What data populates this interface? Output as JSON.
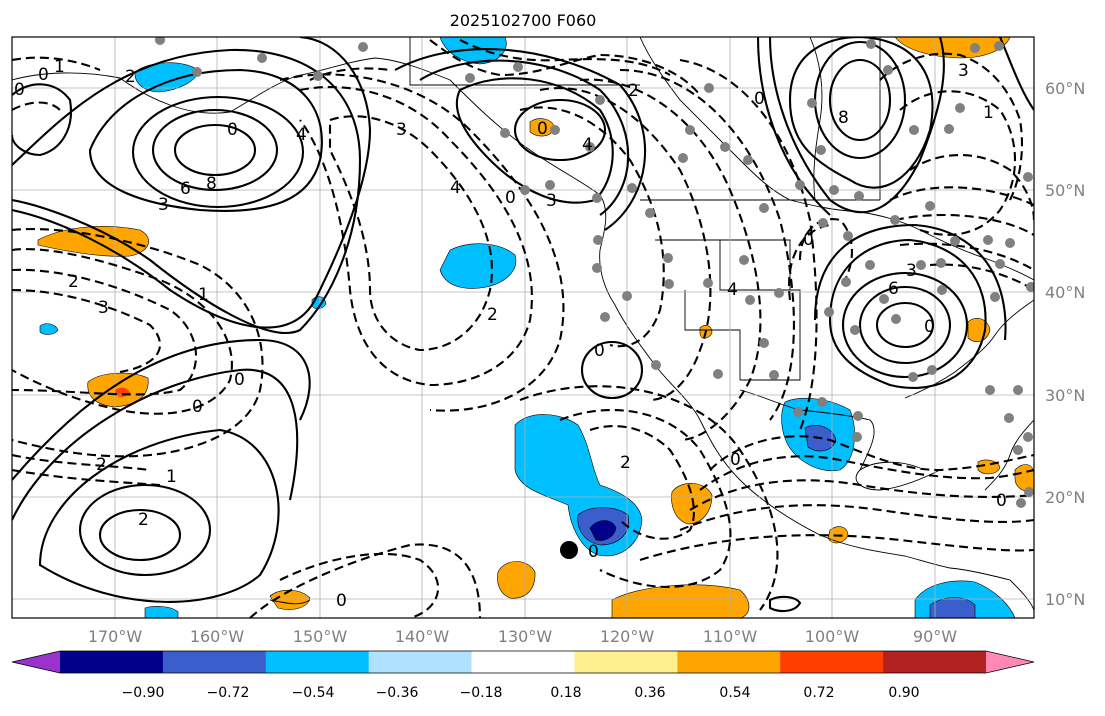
{
  "title": "2025102700 F060",
  "lat_labels": [
    "60°N",
    "50°N",
    "40°N",
    "30°N",
    "20°N",
    "10°N"
  ],
  "lon_labels": [
    "170°W",
    "160°W",
    "150°W",
    "140°W",
    "130°W",
    "120°W",
    "110°W",
    "100°W",
    "90°W"
  ],
  "colorbar": {
    "ticks": [
      "−0.90",
      "−0.72",
      "−0.54",
      "−0.36",
      "−0.18",
      "0.18",
      "0.36",
      "0.54",
      "0.72",
      "0.90"
    ],
    "colors": [
      "#9a32cd",
      "#00008b",
      "#3a5fcd",
      "#00bfff",
      "#b0e2ff",
      "#ffffff",
      "#fff08f",
      "#ffa500",
      "#ff3e00",
      "#b22222",
      "#ff89b4"
    ]
  },
  "contour_labels": [
    {
      "text": "0"
    },
    {
      "text": "1"
    },
    {
      "text": "2"
    },
    {
      "text": "0"
    },
    {
      "text": "8"
    },
    {
      "text": "6"
    },
    {
      "text": "3"
    },
    {
      "text": "4"
    },
    {
      "text": "2"
    },
    {
      "text": "3"
    },
    {
      "text": "1"
    },
    {
      "text": "0"
    },
    {
      "text": "0"
    },
    {
      "text": "2"
    },
    {
      "text": "1"
    },
    {
      "text": "2"
    },
    {
      "text": "3"
    },
    {
      "text": "4"
    },
    {
      "text": "0"
    },
    {
      "text": "3"
    },
    {
      "text": "0"
    },
    {
      "text": "4"
    },
    {
      "text": "2"
    },
    {
      "text": "0"
    },
    {
      "text": "2"
    },
    {
      "text": "0"
    },
    {
      "text": "0"
    },
    {
      "text": "8"
    },
    {
      "text": "3"
    },
    {
      "text": "1"
    },
    {
      "text": "0"
    },
    {
      "text": "6"
    },
    {
      "text": "3"
    },
    {
      "text": "0"
    },
    {
      "text": "4"
    },
    {
      "text": "0"
    },
    {
      "text": "0"
    },
    {
      "text": "0"
    },
    {
      "text": "2"
    },
    {
      "text": "0"
    }
  ]
}
